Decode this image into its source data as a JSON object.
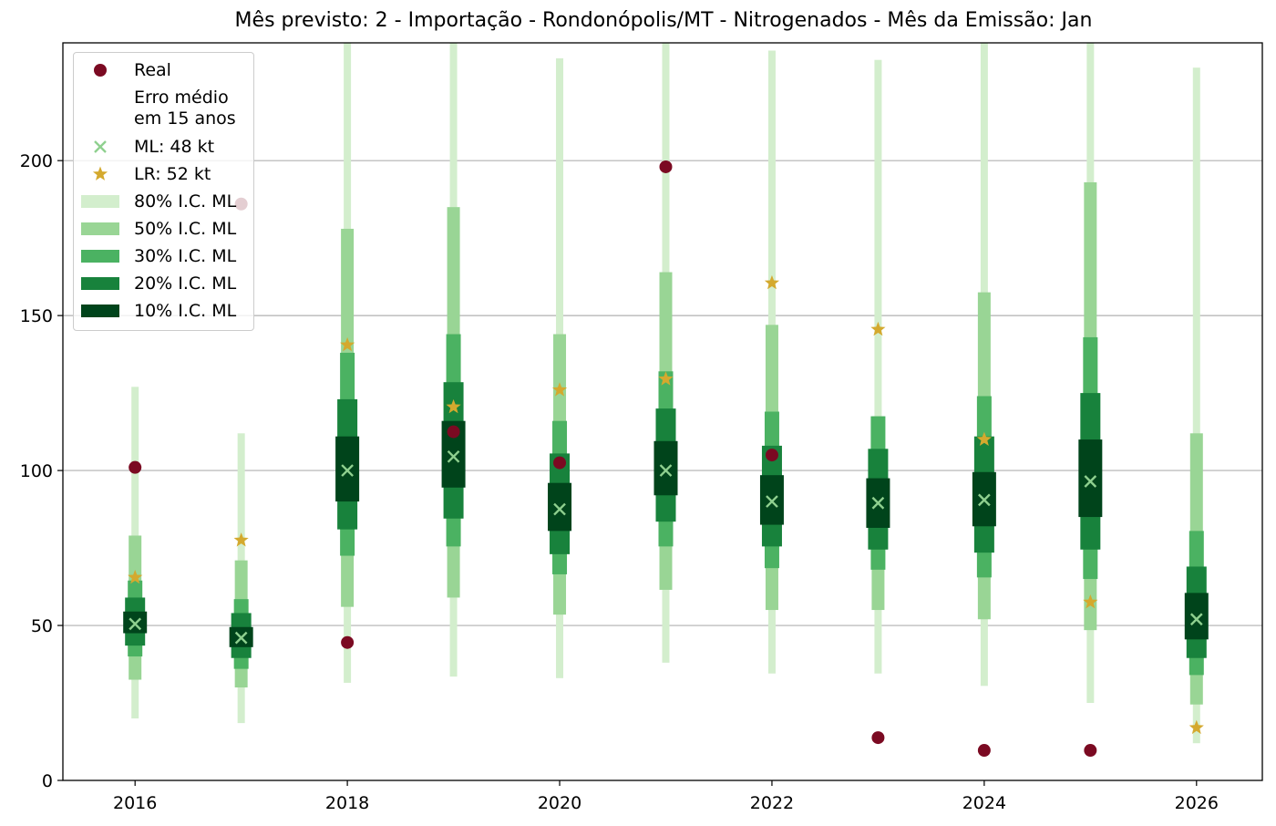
{
  "title": "Mês previsto: 2 - Importação - Rondonópolis/MT - Nitrogenados - Mês da Emissão: Jan",
  "colors": {
    "real": "#7b0a22",
    "ml": "#8fd08f",
    "lr": "#d4a92e",
    "ci80": "#d3eecd",
    "ci50": "#99d595",
    "ci30": "#4bb262",
    "ci20": "#18823c",
    "ci10": "#00441b",
    "grid": "#b0b0b0"
  },
  "legend": {
    "real": "Real",
    "error_header": "Erro médio\nem 15 anos",
    "ml": "ML: 48 kt",
    "lr": "LR: 52 kt",
    "ci80": "80% I.C. ML",
    "ci50": "50% I.C. ML",
    "ci30": "30% I.C. ML",
    "ci20": "20% I.C. ML",
    "ci10": "10% I.C. ML"
  },
  "chart_data": {
    "type": "scatter",
    "title": "Mês previsto: 2 - Importação - Rondonópolis/MT - Nitrogenados - Mês da Emissão: Jan",
    "xlim": [
      2015.32,
      2026.62
    ],
    "ylim": [
      0,
      238
    ],
    "xticks": [
      2016,
      2018,
      2020,
      2022,
      2024,
      2026
    ],
    "yticks": [
      0,
      50,
      100,
      150,
      200
    ],
    "grid": "horizontal",
    "legend_position": "upper-left",
    "years": [
      2016,
      2017,
      2018,
      2019,
      2020,
      2021,
      2022,
      2023,
      2024,
      2025,
      2026
    ],
    "real": [
      101,
      186,
      44.5,
      112.5,
      102.5,
      198,
      105,
      13.8,
      9.7,
      9.7,
      null
    ],
    "ml": [
      50.5,
      46,
      100,
      104.5,
      87.5,
      100,
      90,
      89.5,
      90.5,
      96.5,
      52
    ],
    "lr": [
      65.5,
      77.5,
      140.5,
      120.5,
      126,
      129.5,
      160.5,
      145.5,
      110,
      57.5,
      17
    ],
    "ci80": [
      [
        20,
        127
      ],
      [
        18.5,
        112
      ],
      [
        31.5,
        238
      ],
      [
        33.5,
        238
      ],
      [
        33,
        233
      ],
      [
        38,
        238
      ],
      [
        34.5,
        235.5
      ],
      [
        34.5,
        232.5
      ],
      [
        30.5,
        238
      ],
      [
        25,
        238
      ],
      [
        12,
        230
      ]
    ],
    "ci50": [
      [
        32.5,
        79
      ],
      [
        30,
        71
      ],
      [
        56,
        178
      ],
      [
        59,
        185
      ],
      [
        53.5,
        144
      ],
      [
        61.5,
        164
      ],
      [
        55,
        147
      ],
      [
        55,
        117.5
      ],
      [
        52,
        157.5
      ],
      [
        48.5,
        193
      ],
      [
        24.5,
        112
      ]
    ],
    "ci30": [
      [
        40,
        64.5
      ],
      [
        36,
        58.5
      ],
      [
        72.5,
        138
      ],
      [
        75.5,
        144
      ],
      [
        66.5,
        116
      ],
      [
        75.5,
        132
      ],
      [
        68.5,
        119
      ],
      [
        68,
        117.5
      ],
      [
        65.5,
        124
      ],
      [
        65,
        143
      ],
      [
        34,
        80.5
      ]
    ],
    "ci20": [
      [
        43.5,
        59
      ],
      [
        39.5,
        54
      ],
      [
        81,
        123
      ],
      [
        84.5,
        128.5
      ],
      [
        73,
        105.5
      ],
      [
        83.5,
        120
      ],
      [
        75.5,
        108
      ],
      [
        74.5,
        107
      ],
      [
        73.5,
        111
      ],
      [
        74.5,
        125
      ],
      [
        39.5,
        69
      ]
    ],
    "ci10": [
      [
        47.5,
        54.5
      ],
      [
        43,
        49.5
      ],
      [
        90,
        111
      ],
      [
        94.5,
        116
      ],
      [
        80.5,
        96
      ],
      [
        92,
        109.5
      ],
      [
        82.5,
        98.5
      ],
      [
        81.5,
        97.5
      ],
      [
        82,
        99.5
      ],
      [
        85,
        110
      ],
      [
        45.5,
        60.5
      ]
    ]
  }
}
